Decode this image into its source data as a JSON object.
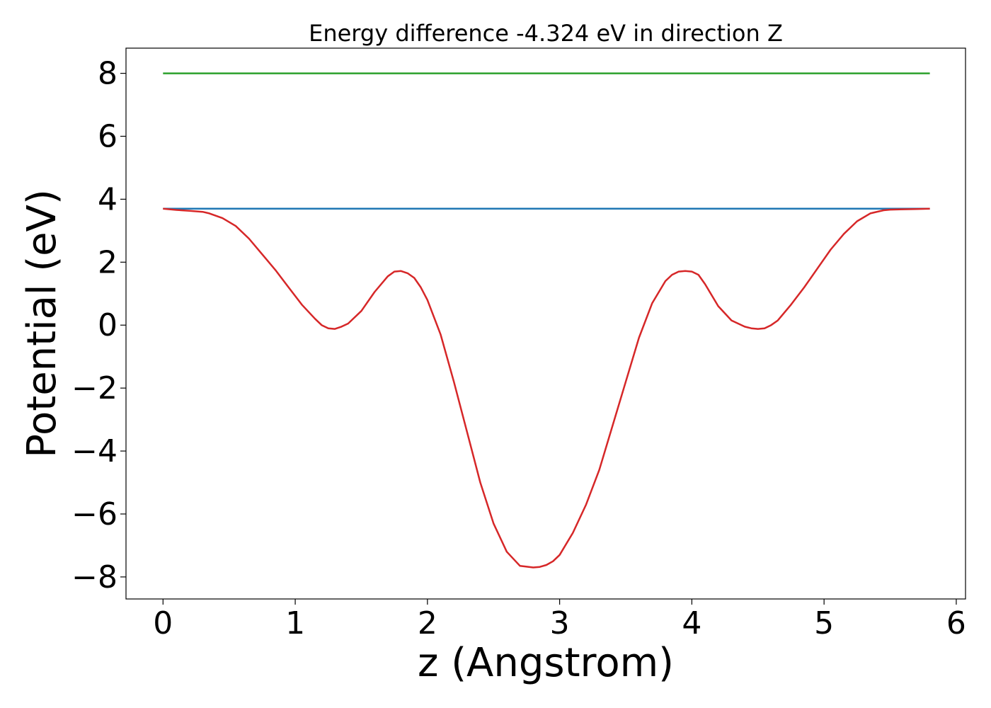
{
  "chart_data": {
    "type": "line",
    "title": "Energy difference -4.324 eV in direction Z",
    "xlabel": "z (Angstrom)",
    "ylabel": "Potential (eV)",
    "xlim": [
      -0.28,
      6.07
    ],
    "ylim": [
      -8.7,
      8.8
    ],
    "xticks": [
      0,
      1,
      2,
      3,
      4,
      5,
      6
    ],
    "yticks": [
      -8,
      -6,
      -4,
      -2,
      0,
      2,
      4,
      6,
      8
    ],
    "xtick_labels": [
      "0",
      "1",
      "2",
      "3",
      "4",
      "5",
      "6"
    ],
    "ytick_labels": [
      "−8",
      "−6",
      "−4",
      "−2",
      "0",
      "2",
      "4",
      "6",
      "8"
    ],
    "grid": false,
    "legend": "none",
    "series": [
      {
        "color": "#2ca02c",
        "x": [
          0,
          5.8
        ],
        "y": [
          8.0,
          8.0
        ]
      },
      {
        "color": "#1f77b4",
        "x": [
          0,
          5.8
        ],
        "y": [
          3.7,
          3.7
        ]
      },
      {
        "color": "#d62728",
        "x": [
          0,
          0.1,
          0.2,
          0.3,
          0.35,
          0.45,
          0.55,
          0.65,
          0.75,
          0.85,
          0.95,
          1.05,
          1.15,
          1.2,
          1.25,
          1.3,
          1.35,
          1.4,
          1.5,
          1.6,
          1.7,
          1.75,
          1.8,
          1.85,
          1.9,
          1.95,
          2.0,
          2.1,
          2.2,
          2.3,
          2.4,
          2.5,
          2.6,
          2.7,
          2.8,
          2.85,
          2.9,
          2.95,
          3.0,
          3.1,
          3.2,
          3.3,
          3.4,
          3.5,
          3.6,
          3.7,
          3.8,
          3.85,
          3.9,
          3.95,
          4.0,
          4.05,
          4.1,
          4.2,
          4.3,
          4.4,
          4.45,
          4.5,
          4.55,
          4.6,
          4.65,
          4.75,
          4.85,
          4.95,
          5.05,
          5.15,
          5.25,
          5.35,
          5.45,
          5.5,
          5.6,
          5.7,
          5.8
        ],
        "y": [
          3.7,
          3.66,
          3.63,
          3.6,
          3.55,
          3.4,
          3.15,
          2.75,
          2.25,
          1.75,
          1.2,
          0.65,
          0.2,
          0.0,
          -0.1,
          -0.12,
          -0.05,
          0.05,
          0.45,
          1.05,
          1.55,
          1.7,
          1.72,
          1.65,
          1.5,
          1.2,
          0.8,
          -0.3,
          -1.8,
          -3.4,
          -5.0,
          -6.3,
          -7.2,
          -7.65,
          -7.7,
          -7.68,
          -7.62,
          -7.5,
          -7.3,
          -6.6,
          -5.7,
          -4.6,
          -3.2,
          -1.8,
          -0.4,
          0.7,
          1.4,
          1.6,
          1.7,
          1.72,
          1.7,
          1.6,
          1.3,
          0.6,
          0.15,
          -0.05,
          -0.1,
          -0.12,
          -0.1,
          0.0,
          0.15,
          0.65,
          1.2,
          1.8,
          2.4,
          2.9,
          3.3,
          3.55,
          3.65,
          3.67,
          3.68,
          3.69,
          3.7
        ]
      }
    ]
  }
}
